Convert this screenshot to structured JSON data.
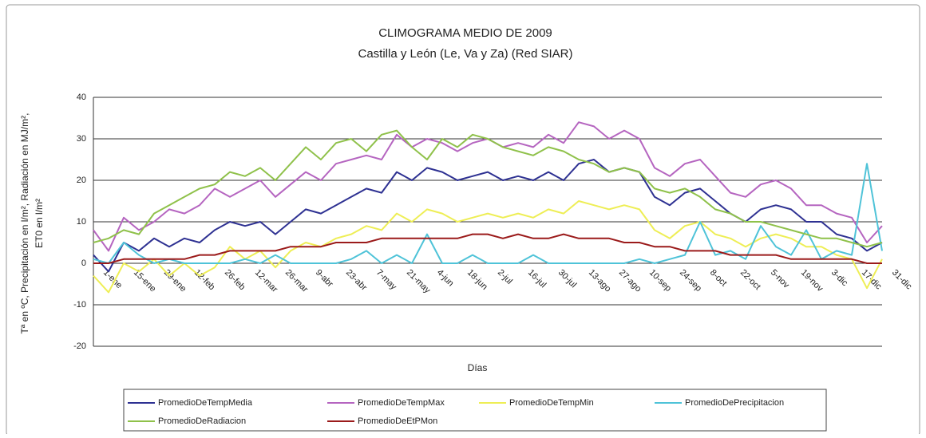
{
  "chart_data": {
    "type": "line",
    "title": "CLIMOGRAMA MEDIO DE 2009",
    "subtitle": "Castilla y León (Le, Va y Za) (Red SIAR)",
    "ylabel": [
      "Tª en ºC, Precipitación en l/m², Radiación en MJ/m²,",
      "ET0 en l/m²"
    ],
    "xlabel": "Días",
    "categories": [
      "1-ene",
      null,
      "15-ene",
      null,
      "29-ene",
      null,
      "12-feb",
      null,
      "26-feb",
      null,
      "12-mar",
      null,
      "26-mar",
      null,
      "9-abr",
      null,
      "23-abr",
      null,
      "7-may",
      null,
      "21-may",
      null,
      "4-jun",
      null,
      "18-jun",
      null,
      "2-jul",
      null,
      "16-jul",
      null,
      "30-jul",
      null,
      "13-ago",
      null,
      "27-ago",
      null,
      "10-sep",
      null,
      "24-sep",
      null,
      "8-oct",
      null,
      "22-oct",
      null,
      "5-nov",
      null,
      "19-nov",
      null,
      "3-dic",
      null,
      "17-dic",
      null,
      "31-dic"
    ],
    "ylim": [
      -20,
      40
    ],
    "yticks": [
      -20,
      -10,
      0,
      10,
      20,
      30,
      40
    ],
    "grid": true,
    "legend": "bottom",
    "series": [
      {
        "name": "PromedioDeTempMedia",
        "color": "#2e3192",
        "values": [
          2,
          -2,
          5,
          3,
          6,
          4,
          6,
          5,
          8,
          10,
          9,
          10,
          7,
          10,
          13,
          12,
          14,
          16,
          18,
          17,
          22,
          20,
          23,
          22,
          20,
          21,
          22,
          20,
          21,
          20,
          22,
          20,
          24,
          25,
          22,
          23,
          22,
          16,
          14,
          17,
          18,
          15,
          12,
          10,
          13,
          14,
          13,
          10,
          10,
          7,
          6,
          3,
          5
        ]
      },
      {
        "name": "PromedioDeTempMax",
        "color": "#b565c0",
        "values": [
          8,
          3,
          11,
          8,
          10,
          13,
          12,
          14,
          18,
          16,
          18,
          20,
          16,
          19,
          22,
          20,
          24,
          25,
          26,
          25,
          31,
          28,
          30,
          29,
          27,
          29,
          30,
          28,
          29,
          28,
          31,
          29,
          34,
          33,
          30,
          32,
          30,
          23,
          21,
          24,
          25,
          21,
          17,
          16,
          19,
          20,
          18,
          14,
          14,
          12,
          11,
          5,
          9
        ]
      },
      {
        "name": "PromedioDeTempMin",
        "color": "#eeee55",
        "values": [
          -3,
          -7,
          0,
          -2,
          1,
          -3,
          0,
          -3,
          -1,
          4,
          1,
          3,
          -1,
          3,
          5,
          4,
          6,
          7,
          9,
          8,
          12,
          10,
          13,
          12,
          10,
          11,
          12,
          11,
          12,
          11,
          13,
          12,
          15,
          14,
          13,
          14,
          13,
          8,
          6,
          9,
          10,
          7,
          6,
          4,
          6,
          7,
          6,
          4,
          4,
          2,
          1,
          -6,
          1
        ]
      },
      {
        "name": "PromedioDePrecipitacion",
        "color": "#4fc3d8",
        "values": [
          1,
          0,
          5,
          2,
          0,
          1,
          0,
          0,
          0,
          0,
          1,
          0,
          2,
          0,
          0,
          0,
          0,
          1,
          3,
          0,
          2,
          0,
          7,
          0,
          0,
          2,
          0,
          0,
          0,
          2,
          0,
          0,
          0,
          0,
          0,
          0,
          1,
          0,
          1,
          2,
          10,
          2,
          3,
          1,
          9,
          4,
          2,
          8,
          1,
          3,
          2,
          24,
          3
        ]
      },
      {
        "name": "PromedioDeRadiacion",
        "color": "#8fc14a",
        "values": [
          5,
          6,
          8,
          7,
          12,
          14,
          16,
          18,
          19,
          22,
          21,
          23,
          20,
          24,
          28,
          25,
          29,
          30,
          27,
          31,
          32,
          28,
          25,
          30,
          28,
          31,
          30,
          28,
          27,
          26,
          28,
          27,
          25,
          24,
          22,
          23,
          22,
          18,
          17,
          18,
          16,
          13,
          12,
          10,
          10,
          9,
          8,
          7,
          6,
          6,
          5,
          4,
          5
        ]
      },
      {
        "name": "PromedioDeEtPMon",
        "color": "#9b1b1b",
        "values": [
          0,
          0,
          1,
          1,
          1,
          1,
          1,
          2,
          2,
          3,
          3,
          3,
          3,
          4,
          4,
          4,
          5,
          5,
          5,
          6,
          6,
          6,
          6,
          6,
          6,
          7,
          7,
          6,
          7,
          6,
          6,
          7,
          6,
          6,
          6,
          5,
          5,
          4,
          4,
          3,
          3,
          3,
          2,
          2,
          2,
          2,
          1,
          1,
          1,
          1,
          1,
          0,
          0
        ]
      }
    ]
  }
}
